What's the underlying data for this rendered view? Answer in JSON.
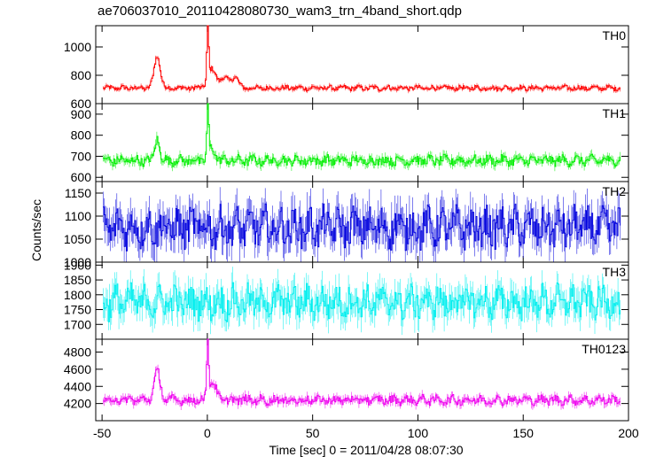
{
  "chart_data": {
    "type": "line",
    "title": "ae706037010_20110428080730_wam3_trn_4band_short.qdp",
    "xlabel": "Time [sec] 0 = 2011/04/28 08:07:30",
    "ylabel": "Counts/sec",
    "xlim": [
      -53,
      200
    ],
    "x_ticks": [
      -50,
      0,
      50,
      100,
      150,
      200
    ],
    "panels": [
      {
        "name": "TH0",
        "color": "#ff0000",
        "ylim": [
          600,
          1150
        ],
        "y_ticks": [
          600,
          800,
          1000
        ],
        "baseline": 710,
        "noise": 15,
        "features": [
          {
            "x": -24,
            "peak": 930,
            "width": 1.5
          },
          {
            "x": 0,
            "peak": 1120,
            "width": 0.4
          },
          {
            "x": 2,
            "peak": 840,
            "width": 2.0
          },
          {
            "x": 8,
            "peak": 780,
            "width": 2.0
          },
          {
            "x": 13,
            "peak": 790,
            "width": 1.5
          }
        ]
      },
      {
        "name": "TH1",
        "color": "#00ee00",
        "ylim": [
          580,
          950
        ],
        "y_ticks": [
          600,
          700,
          800,
          900
        ],
        "baseline": 680,
        "noise": 20,
        "features": [
          {
            "x": -24,
            "peak": 790,
            "width": 1.0
          },
          {
            "x": 0,
            "peak": 920,
            "width": 0.4
          },
          {
            "x": 2,
            "peak": 740,
            "width": 1.5
          }
        ]
      },
      {
        "name": "TH2",
        "color": "#0000dd",
        "ylim": [
          1000,
          1175
        ],
        "y_ticks": [
          1000,
          1050,
          1100,
          1150
        ],
        "baseline": 1075,
        "noise": 35,
        "features": []
      },
      {
        "name": "TH3",
        "color": "#00eeee",
        "ylim": [
          1650,
          1910
        ],
        "y_ticks": [
          1700,
          1750,
          1800,
          1850,
          1900
        ],
        "baseline": 1775,
        "noise": 45,
        "features": []
      },
      {
        "name": "TH0123",
        "color": "#ee00ee",
        "ylim": [
          4000,
          4950
        ],
        "y_ticks": [
          4200,
          4400,
          4600,
          4800
        ],
        "baseline": 4240,
        "noise": 45,
        "features": [
          {
            "x": -24,
            "peak": 4560,
            "width": 1.5
          },
          {
            "x": 0,
            "peak": 4900,
            "width": 0.4
          },
          {
            "x": 2,
            "peak": 4450,
            "width": 1.8
          }
        ]
      }
    ]
  }
}
